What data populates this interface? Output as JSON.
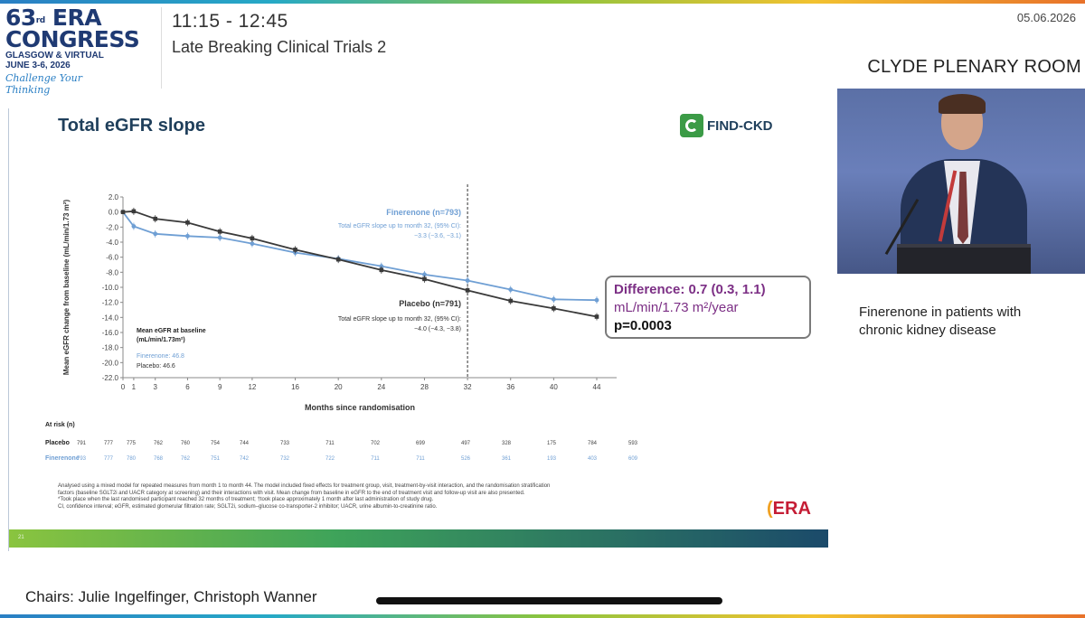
{
  "header": {
    "logo_line1": "63",
    "logo_sup": "rd",
    "logo_line1b": "ERA",
    "logo_line2": "CONGRESS",
    "logo_line3": "GLASGOW & VIRTUAL",
    "logo_line4": "JUNE 3-6, 2026",
    "logo_tagline": "Challenge Your Thinking",
    "session_time": "11:15 - 12:45",
    "session_name": "Late Breaking Clinical Trials 2",
    "date": "05.06.2026",
    "room": "CLYDE PLENARY ROOM"
  },
  "slide": {
    "title": "Total eGFR slope",
    "study_logo": "FIND-CKD",
    "page_number": "21",
    "era_logo": "ERA",
    "difference": {
      "line1": "Difference: 0.7 (0.3, 1.1)",
      "line2": "mL/min/1.73 m²/year",
      "line3": "p=0.0003"
    },
    "footnotes": [
      "Analysed using a mixed model for repeated measures from month 1 to month 44. The model included fixed effects for treatment group, visit, treatment-by-visit interaction, and the randomisation stratification",
      "factors (baseline SGLT2i and UACR category at screening) and their interactions with visit. Mean change from baseline in eGFR to the end of treatment visit and follow-up visit are also presented.",
      "*Took place when the last randomised participant reached 32 months of treatment; †took place approximately 1 month after last administration of study drug.",
      "CI, confidence interval; eGFR, estimated glomerular filtration rate; SGLT2i, sodium–glucose co-transporter-2 inhibitor; UACR, urine albumin-to-creatinine ratio."
    ]
  },
  "chart_data": {
    "type": "line",
    "xlabel": "Months since randomisation",
    "ylabel": "Mean eGFR change from baseline (mL/min/1.73 m²)",
    "ylim": [
      -22,
      2
    ],
    "yticks": [
      "2.0",
      "0.0",
      "-2.0",
      "-4.0",
      "-6.0",
      "-8.0",
      "-10.0",
      "-12.0",
      "-14.0",
      "-16.0",
      "-18.0",
      "-20.0",
      "-22.0"
    ],
    "xticks": [
      "0",
      "1",
      "3",
      "6",
      "9",
      "12",
      "16",
      "20",
      "24",
      "28",
      "32",
      "36",
      "40",
      "44"
    ],
    "reference_line_x": 32,
    "series": [
      {
        "name": "Finerenone (n=793)",
        "color": "#6f9fd4",
        "x": [
          0,
          1,
          3,
          6,
          9,
          12,
          16,
          20,
          24,
          28,
          32,
          36,
          40,
          44
        ],
        "values": [
          0.0,
          -1.9,
          -2.9,
          -3.2,
          -3.4,
          -4.2,
          -5.4,
          -6.2,
          -7.2,
          -8.3,
          -9.1,
          -10.3,
          -11.6,
          -11.7
        ]
      },
      {
        "name": "Placebo (n=791)",
        "color": "#3a3a3a",
        "x": [
          0,
          1,
          3,
          6,
          9,
          12,
          16,
          20,
          24,
          28,
          32,
          36,
          40,
          44
        ],
        "values": [
          0.0,
          0.1,
          -0.9,
          -1.4,
          -2.6,
          -3.5,
          -5.0,
          -6.3,
          -7.7,
          -8.9,
          -10.4,
          -11.8,
          -12.8,
          -13.9
        ]
      }
    ],
    "annotations": [
      {
        "label": "Finerenone (n=793)",
        "text": "Total eGFR slope up to month 32, (95% CI):",
        "value": "−3.3 (−3.6, −3.1)"
      },
      {
        "label": "Placebo (n=791)",
        "text": "Total eGFR slope up to month 32, (95% CI):",
        "value": "−4.0 (−4.3, −3.8)"
      }
    ],
    "baseline_box": {
      "title": "Mean eGFR at baseline",
      "unit": "(mL/min/1.73m²)",
      "finerenone": "Finerenone: 46.8",
      "placebo": "Placebo: 46.6"
    },
    "at_risk": {
      "header": "At risk (n)",
      "rows": [
        {
          "label": "Placebo",
          "values": [
            "791",
            "777",
            "775",
            "762",
            "760",
            "754",
            "744",
            "733",
            "711",
            "702",
            "699",
            "497",
            "328",
            "175",
            "784",
            "593"
          ]
        },
        {
          "label": "Finerenone",
          "values": [
            "793",
            "777",
            "780",
            "768",
            "762",
            "751",
            "742",
            "732",
            "722",
            "711",
            "711",
            "526",
            "361",
            "193",
            "403",
            "609"
          ]
        }
      ]
    }
  },
  "sidebar": {
    "topic_line1": "Finerenone in patients with",
    "topic_line2": "chronic kidney disease"
  },
  "footer": {
    "chairs": "Chairs: Julie Ingelfinger, Christoph Wanner"
  }
}
